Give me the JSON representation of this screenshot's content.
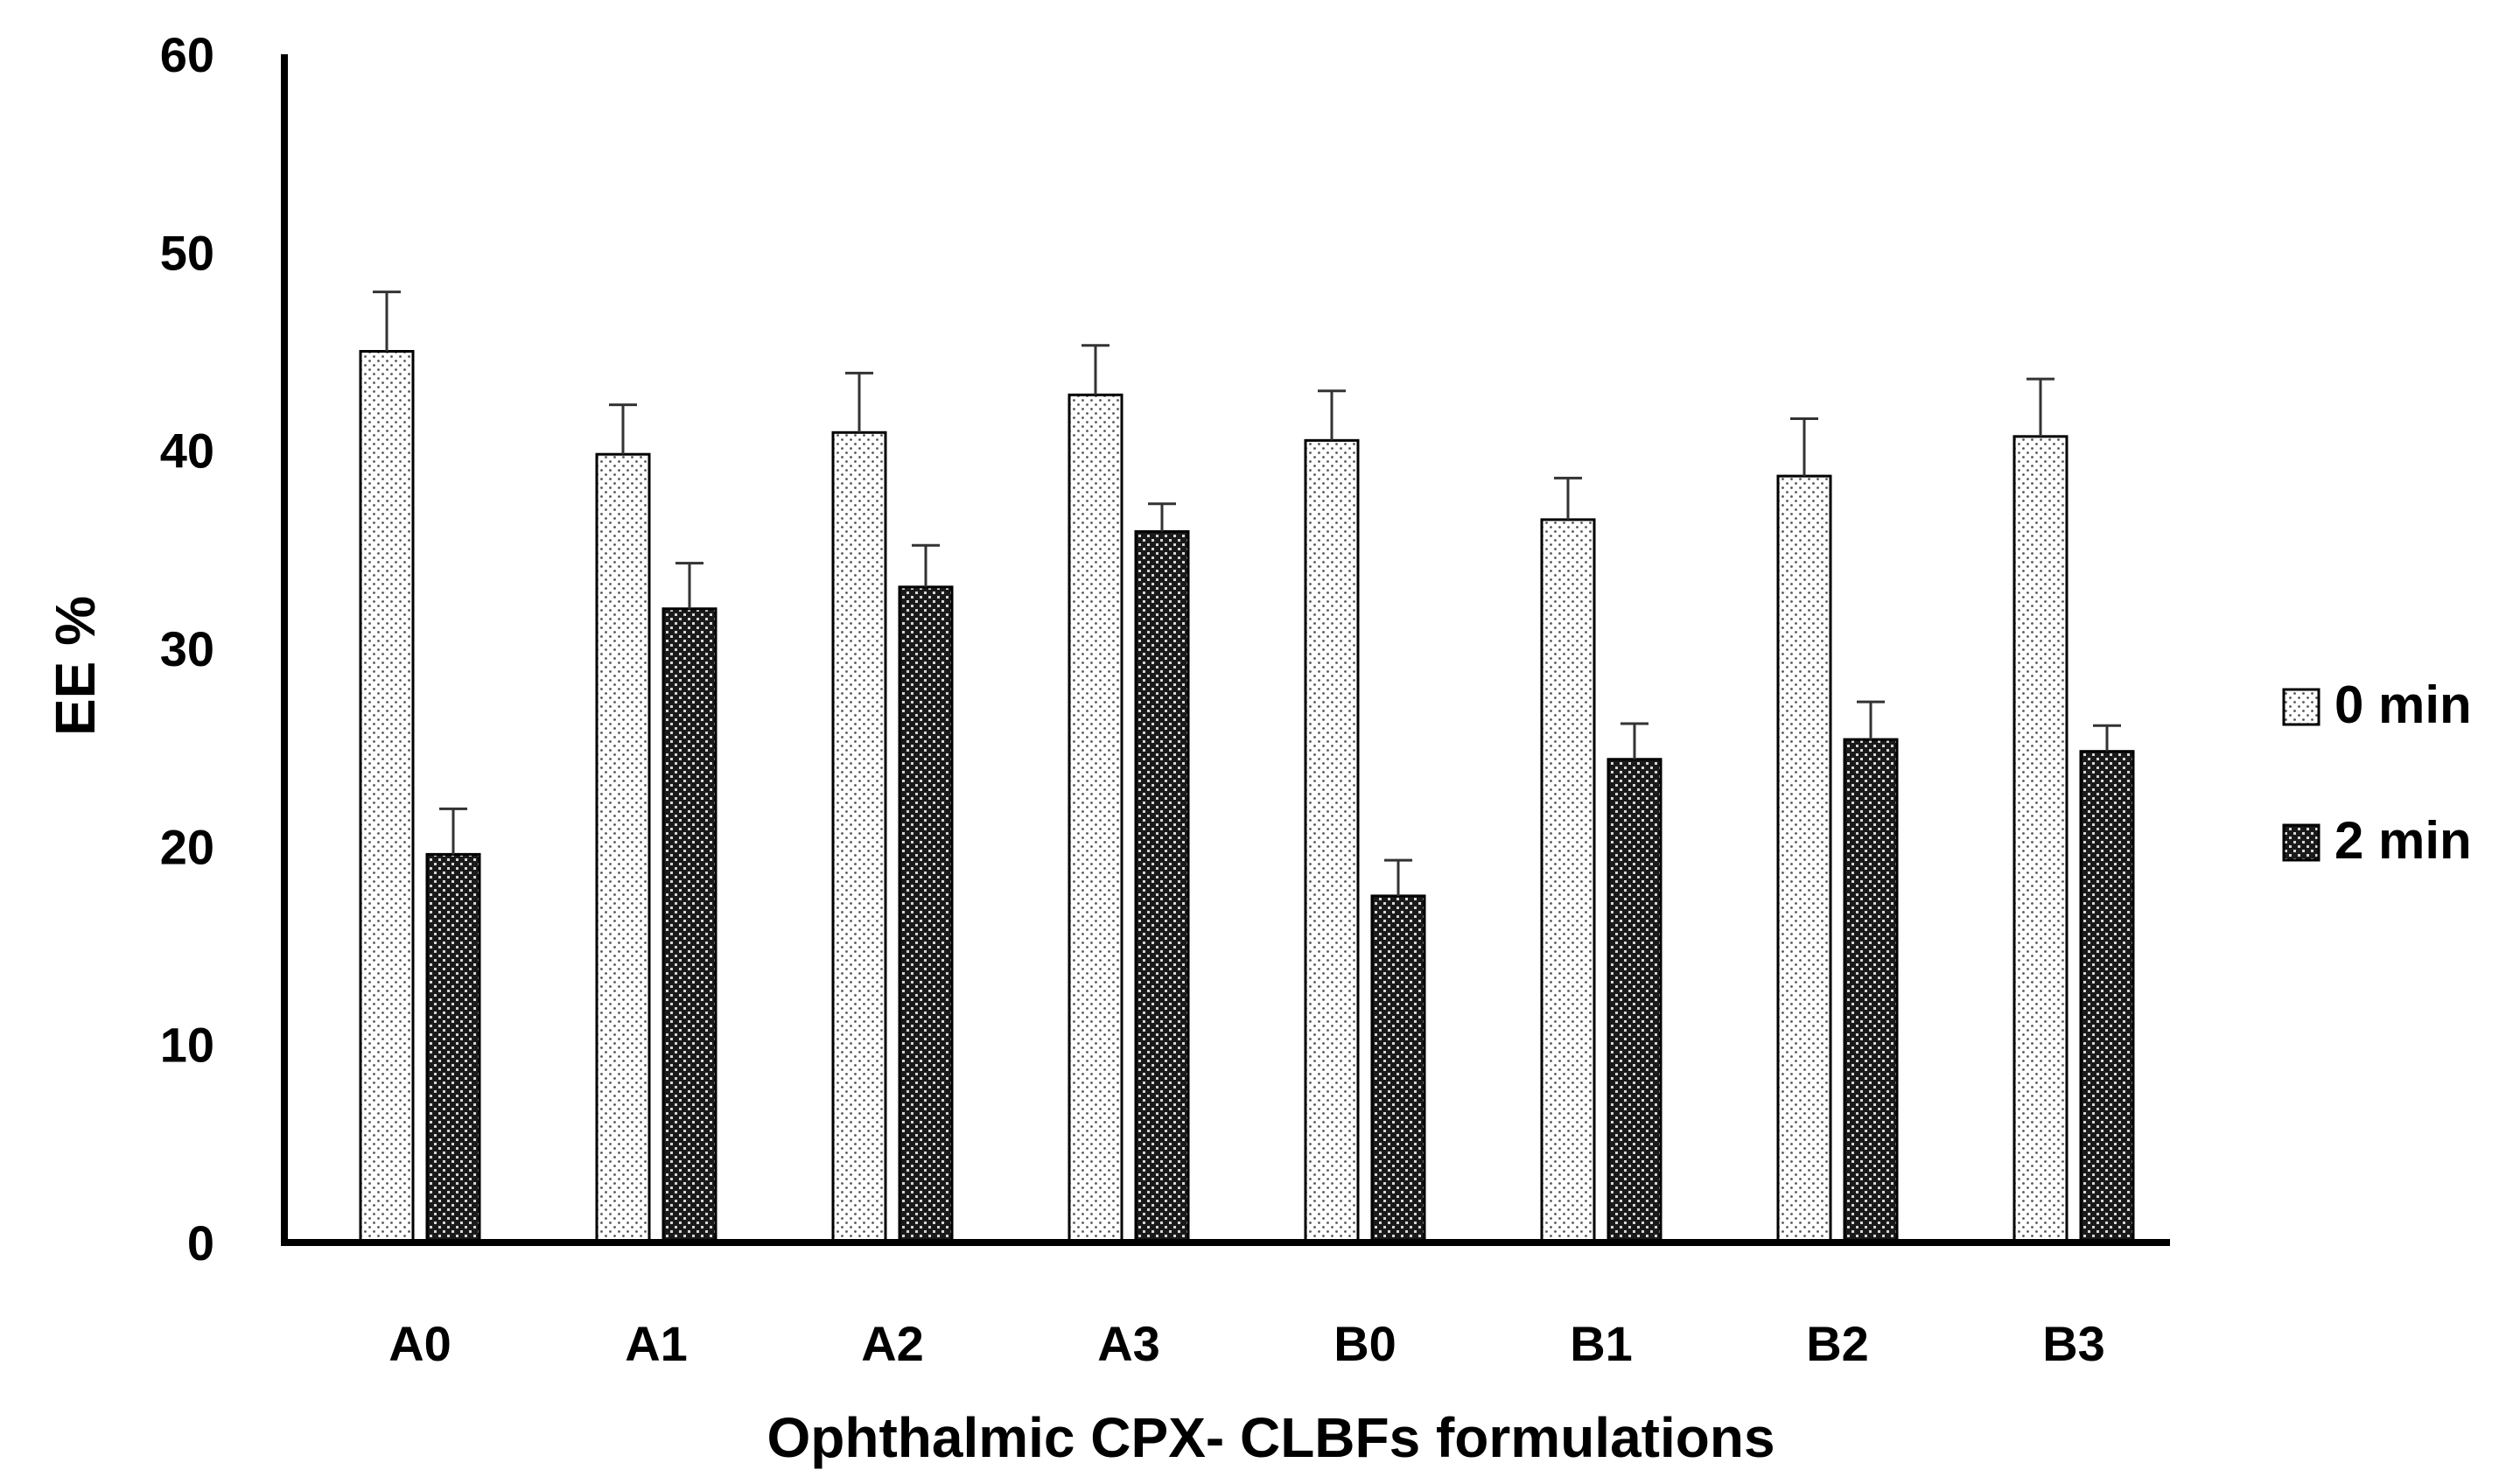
{
  "chart_data": {
    "type": "bar",
    "title": "",
    "xlabel": "Ophthalmic CPX- CLBFs formulations",
    "ylabel": "EE %",
    "ylim": [
      0,
      60
    ],
    "yticks": [
      0,
      10,
      20,
      30,
      40,
      50,
      60
    ],
    "categories": [
      "A0",
      "A1",
      "A2",
      "A3",
      "B0",
      "B1",
      "B2",
      "B3"
    ],
    "series": [
      {
        "name": "0 min",
        "pattern": "light-dotted",
        "values": [
          45.0,
          39.8,
          40.9,
          42.8,
          40.5,
          36.5,
          38.7,
          40.7
        ],
        "errors": [
          3.0,
          2.5,
          3.0,
          2.5,
          2.5,
          2.1,
          2.9,
          2.9
        ]
      },
      {
        "name": "2 min",
        "pattern": "dark-crosshatch",
        "values": [
          19.6,
          32.0,
          33.1,
          35.9,
          17.5,
          24.4,
          25.4,
          24.8
        ],
        "errors": [
          2.3,
          2.3,
          2.1,
          1.4,
          1.8,
          1.8,
          1.9,
          1.3
        ]
      }
    ],
    "legend": "right",
    "grid": false,
    "colors": {
      "axis": "#000000",
      "bar_edge": "#000000",
      "dot": "#555555",
      "dark_fill": "#3a3a3a"
    }
  }
}
